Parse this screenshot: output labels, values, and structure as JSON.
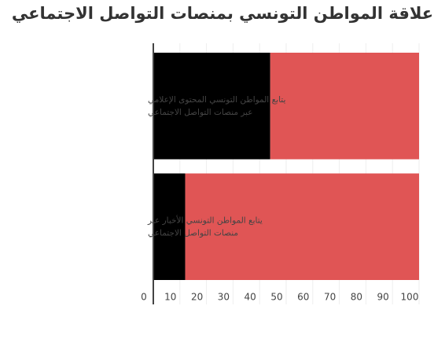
{
  "chart_data": {
    "type": "stacked-bar-horizontal",
    "title": "علاقة المواطن التونسي بمنصات التواصل الاجتماعي",
    "categories": [
      [
        "يتابع المواطن التونسي المحتوى الإعلامي",
        "عبر منصات التواصل الاجتماعي"
      ],
      [
        "يتابع المواطن التونسي الأخبار عبر",
        "منصات التواصل الاجتماعي"
      ]
    ],
    "series": [
      {
        "color": "#000000",
        "values": [
          44,
          12
        ]
      },
      {
        "color": "#e05555",
        "values": [
          56,
          88
        ]
      }
    ],
    "xlim": [
      0,
      100
    ],
    "xticks": [
      0,
      10,
      20,
      30,
      40,
      50,
      60,
      70,
      80,
      90,
      100
    ],
    "grid": true
  }
}
